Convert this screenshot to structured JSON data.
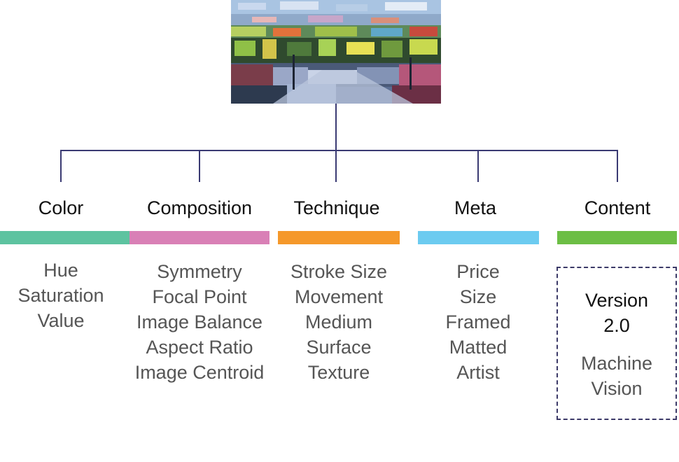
{
  "colors": {
    "line": "#3a3a73",
    "box_border": "#3c3a68",
    "title_text": "#111111",
    "item_text": "#555555"
  },
  "image": {
    "subject": "abstract-landscape-painting"
  },
  "categories": [
    {
      "title": "Color",
      "bar_color": "#5dc3a0",
      "items": [
        "Hue",
        "Saturation",
        "Value"
      ]
    },
    {
      "title": "Composition",
      "bar_color": "#d980b6",
      "items": [
        "Symmetry",
        "Focal Point",
        "Image Balance",
        "Aspect Ratio",
        "Image Centroid"
      ]
    },
    {
      "title": "Technique",
      "bar_color": "#f5982a",
      "items": [
        "Stroke Size",
        "Movement",
        "Medium",
        "Surface",
        "Texture"
      ]
    },
    {
      "title": "Meta",
      "bar_color": "#6ccbf0",
      "items": [
        "Price",
        "Size",
        "Framed",
        "Matted",
        "Artist"
      ]
    },
    {
      "title": "Content",
      "bar_color": "#6cbe45",
      "items": []
    }
  ],
  "version_box": {
    "title_line1": "Version",
    "title_line2": "2.0",
    "items": [
      "Machine",
      "Vision"
    ]
  }
}
